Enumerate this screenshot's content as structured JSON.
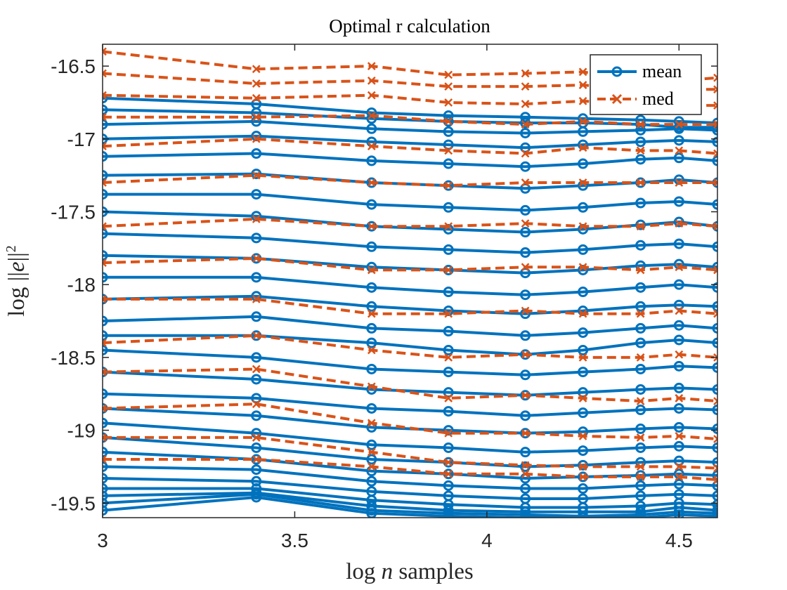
{
  "chart_data": {
    "type": "line",
    "title": "Optimal r calculation",
    "xlabel": "log n samples",
    "ylabel": "log ||e||²",
    "xlim": [
      3,
      4.6
    ],
    "ylim": [
      -19.6,
      -16.35
    ],
    "xticks": [
      3,
      3.5,
      4,
      4.5
    ],
    "xtick_labels": [
      "3",
      "3.5",
      "4",
      "4.5"
    ],
    "yticks": [
      -19.5,
      -19,
      -18.5,
      -18,
      -17.5,
      -17,
      -16.5
    ],
    "ytick_labels": [
      "-19.5",
      "-19",
      "-18.5",
      "-18",
      "-17.5",
      "-17",
      "-16.5"
    ],
    "grid": false,
    "legend_position": "top-right",
    "x": [
      3,
      3.4,
      3.7,
      3.9,
      4.1,
      4.25,
      4.4,
      4.5,
      4.6
    ],
    "series": [
      {
        "name": "mean",
        "style": "solid-line-circle-markers",
        "color": "#0072BD",
        "lines": [
          [
            -19.55,
            -19.46,
            -19.57,
            -19.59,
            -19.6,
            -19.6,
            -19.6,
            -19.58,
            -19.59
          ],
          [
            -19.5,
            -19.44,
            -19.55,
            -19.57,
            -19.58,
            -19.59,
            -19.58,
            -19.56,
            -19.57
          ],
          [
            -19.45,
            -19.43,
            -19.52,
            -19.55,
            -19.56,
            -19.56,
            -19.56,
            -19.53,
            -19.55
          ],
          [
            -19.4,
            -19.4,
            -19.48,
            -19.51,
            -19.53,
            -19.53,
            -19.52,
            -19.5,
            -19.51
          ],
          [
            -19.33,
            -19.35,
            -19.42,
            -19.45,
            -19.47,
            -19.47,
            -19.45,
            -19.44,
            -19.45
          ],
          [
            -19.25,
            -19.27,
            -19.35,
            -19.38,
            -19.4,
            -19.4,
            -19.38,
            -19.37,
            -19.38
          ],
          [
            -19.15,
            -19.2,
            -19.28,
            -19.3,
            -19.33,
            -19.32,
            -19.31,
            -19.3,
            -19.31
          ],
          [
            -19.05,
            -19.12,
            -19.2,
            -19.22,
            -19.25,
            -19.24,
            -19.22,
            -19.21,
            -19.22
          ],
          [
            -18.95,
            -19.02,
            -19.1,
            -19.12,
            -19.15,
            -19.14,
            -19.12,
            -19.11,
            -19.12
          ],
          [
            -18.85,
            -18.9,
            -18.98,
            -19.0,
            -19.02,
            -19.01,
            -18.99,
            -18.98,
            -18.99
          ],
          [
            -18.75,
            -18.78,
            -18.85,
            -18.87,
            -18.9,
            -18.88,
            -18.86,
            -18.85,
            -18.86
          ],
          [
            -18.6,
            -18.65,
            -18.72,
            -18.74,
            -18.76,
            -18.74,
            -18.72,
            -18.71,
            -18.72
          ],
          [
            -18.45,
            -18.5,
            -18.58,
            -18.6,
            -18.62,
            -18.6,
            -18.58,
            -18.56,
            -18.57
          ],
          [
            -18.35,
            -18.35,
            -18.4,
            -18.45,
            -18.48,
            -18.45,
            -18.4,
            -18.38,
            -18.4
          ],
          [
            -18.25,
            -18.22,
            -18.3,
            -18.32,
            -18.35,
            -18.33,
            -18.3,
            -18.28,
            -18.3
          ],
          [
            -18.1,
            -18.08,
            -18.15,
            -18.18,
            -18.2,
            -18.18,
            -18.15,
            -18.14,
            -18.15
          ],
          [
            -17.95,
            -17.95,
            -18.02,
            -18.05,
            -18.07,
            -18.05,
            -18.02,
            -18.0,
            -18.02
          ],
          [
            -17.8,
            -17.82,
            -17.88,
            -17.9,
            -17.92,
            -17.9,
            -17.87,
            -17.86,
            -17.88
          ],
          [
            -17.65,
            -17.68,
            -17.74,
            -17.76,
            -17.78,
            -17.76,
            -17.73,
            -17.72,
            -17.74
          ],
          [
            -17.5,
            -17.53,
            -17.6,
            -17.62,
            -17.64,
            -17.62,
            -17.59,
            -17.57,
            -17.6
          ],
          [
            -17.38,
            -17.38,
            -17.45,
            -17.47,
            -17.49,
            -17.47,
            -17.44,
            -17.43,
            -17.45
          ],
          [
            -17.25,
            -17.24,
            -17.3,
            -17.32,
            -17.34,
            -17.32,
            -17.3,
            -17.28,
            -17.3
          ],
          [
            -17.12,
            -17.1,
            -17.15,
            -17.17,
            -17.19,
            -17.17,
            -17.14,
            -17.13,
            -17.15
          ],
          [
            -17.0,
            -16.98,
            -17.02,
            -17.04,
            -17.06,
            -17.04,
            -17.02,
            -17.01,
            -17.02
          ],
          [
            -16.9,
            -16.88,
            -16.93,
            -16.95,
            -16.96,
            -16.95,
            -16.94,
            -16.93,
            -16.94
          ],
          [
            -16.8,
            -16.82,
            -16.86,
            -16.88,
            -16.89,
            -16.89,
            -16.9,
            -16.92,
            -16.92
          ],
          [
            -16.72,
            -16.76,
            -16.82,
            -16.84,
            -16.85,
            -16.86,
            -16.87,
            -16.88,
            -16.89
          ]
        ]
      },
      {
        "name": "med",
        "style": "dashed-line-x-markers",
        "color": "#D95319",
        "lines": [
          [
            -16.4,
            -16.52,
            -16.5,
            -16.56,
            -16.55,
            -16.54,
            -16.6,
            -16.6,
            -16.58
          ],
          [
            -16.55,
            -16.62,
            -16.6,
            -16.64,
            -16.64,
            -16.63,
            -16.66,
            -16.66,
            -16.66
          ],
          [
            -16.7,
            -16.72,
            -16.7,
            -16.75,
            -16.76,
            -16.74,
            -16.76,
            -16.77,
            -16.77
          ],
          [
            -16.85,
            -16.85,
            -16.84,
            -16.88,
            -16.9,
            -16.88,
            -16.9,
            -16.9,
            -16.9
          ],
          [
            -17.05,
            -17.0,
            -17.05,
            -17.08,
            -17.1,
            -17.06,
            -17.08,
            -17.08,
            -17.1
          ],
          [
            -17.3,
            -17.25,
            -17.3,
            -17.32,
            -17.3,
            -17.3,
            -17.3,
            -17.3,
            -17.3
          ],
          [
            -17.6,
            -17.55,
            -17.6,
            -17.6,
            -17.58,
            -17.6,
            -17.6,
            -17.58,
            -17.6
          ],
          [
            -17.85,
            -17.82,
            -17.9,
            -17.9,
            -17.88,
            -17.88,
            -17.9,
            -17.88,
            -17.9
          ],
          [
            -18.1,
            -18.1,
            -18.2,
            -18.2,
            -18.18,
            -18.2,
            -18.2,
            -18.18,
            -18.2
          ],
          [
            -18.4,
            -18.35,
            -18.45,
            -18.5,
            -18.48,
            -18.5,
            -18.5,
            -18.48,
            -18.5
          ],
          [
            -18.6,
            -18.58,
            -18.7,
            -18.78,
            -18.76,
            -18.78,
            -18.8,
            -18.78,
            -18.8
          ],
          [
            -18.85,
            -18.82,
            -18.95,
            -19.02,
            -19.02,
            -19.04,
            -19.05,
            -19.04,
            -19.06
          ],
          [
            -19.05,
            -19.05,
            -19.15,
            -19.22,
            -19.24,
            -19.25,
            -19.25,
            -19.25,
            -19.26
          ],
          [
            -19.2,
            -19.2,
            -19.25,
            -19.3,
            -19.3,
            -19.32,
            -19.32,
            -19.32,
            -19.34
          ]
        ]
      }
    ]
  },
  "legend": {
    "items": [
      {
        "label": "mean",
        "color": "#0072BD"
      },
      {
        "label": "med",
        "color": "#D95319"
      }
    ]
  }
}
